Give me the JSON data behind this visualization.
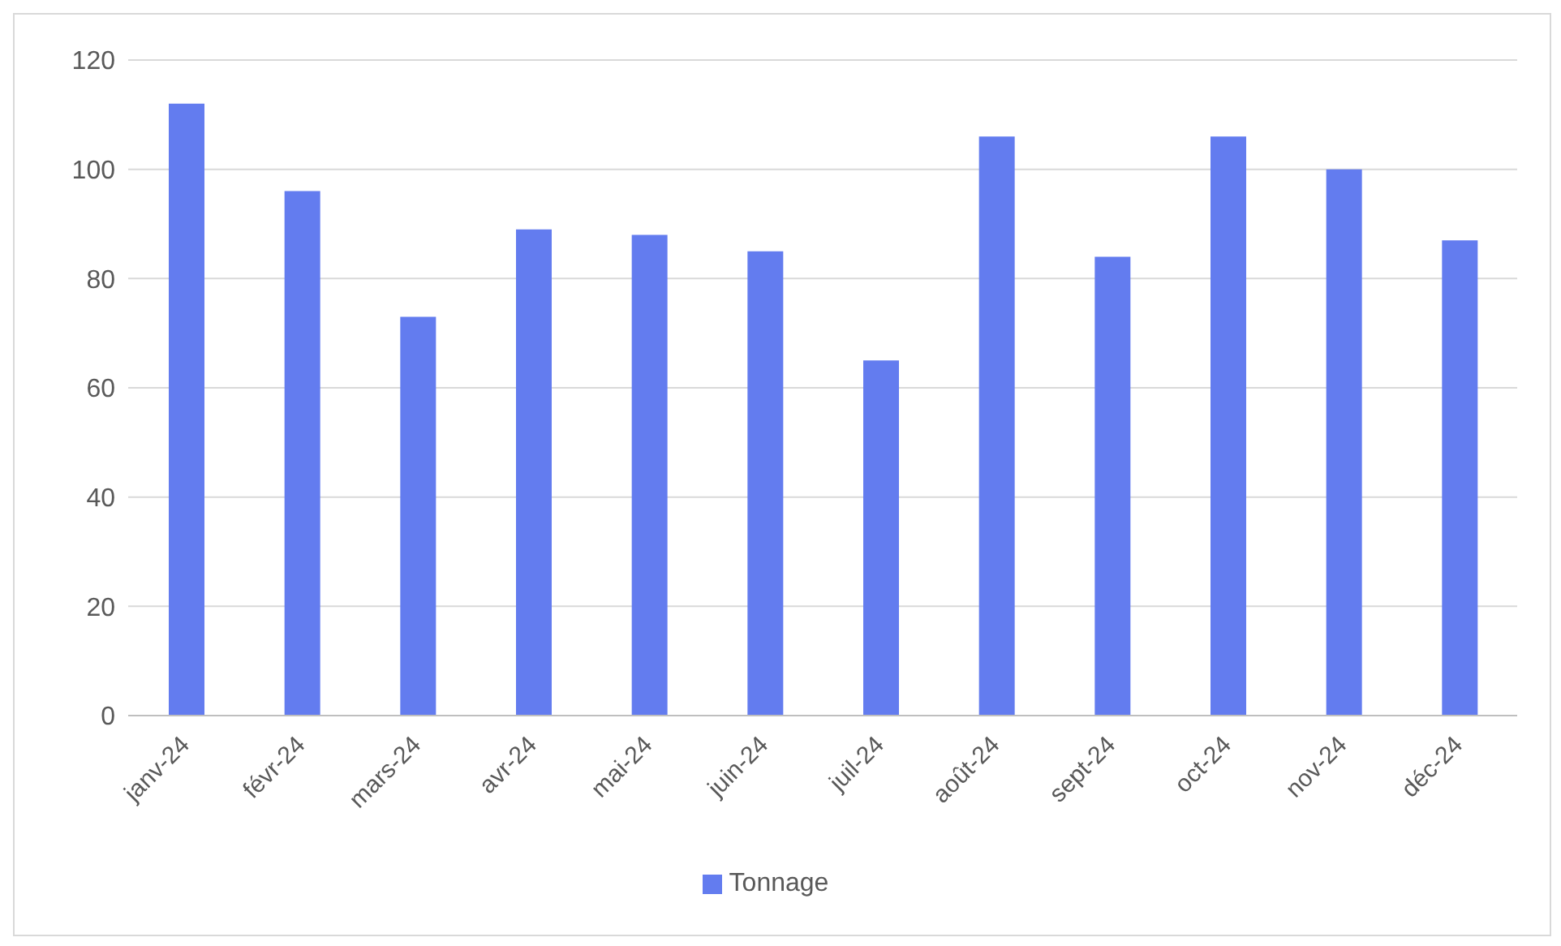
{
  "chart_data": {
    "type": "bar",
    "categories": [
      "janv-24",
      "févr-24",
      "mars-24",
      "avr-24",
      "mai-24",
      "juin-24",
      "juil-24",
      "août-24",
      "sept-24",
      "oct-24",
      "nov-24",
      "déc-24"
    ],
    "series": [
      {
        "name": "Tonnage",
        "color": "#637cef",
        "values": [
          112,
          96,
          73,
          89,
          88,
          85,
          65,
          106,
          84,
          106,
          100,
          87
        ]
      }
    ],
    "ylim": [
      0,
      120
    ],
    "yticks": [
      0,
      20,
      40,
      60,
      80,
      100,
      120
    ],
    "grid": "y",
    "legend": "bottom"
  }
}
